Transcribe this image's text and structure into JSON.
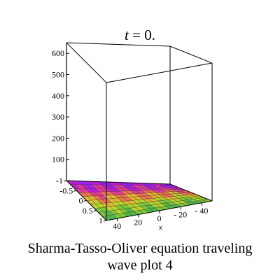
{
  "title": {
    "variable": "t",
    "equals": " = ",
    "value": "0."
  },
  "caption": {
    "line1": "Sharma-Tasso-Oliver equation  traveling",
    "line2": "wave plot 4"
  },
  "chart_data": {
    "type": "surface3d",
    "title": "t = 0.",
    "xlabel": "x",
    "ylabel": "",
    "zlabel": "",
    "x_ticks": [
      40,
      20,
      0,
      -20,
      -40
    ],
    "x_tick_labels": [
      "40",
      "20",
      "0",
      "- 20",
      "- 40"
    ],
    "y_ticks": [
      -1,
      -0.5,
      0,
      0.5,
      1
    ],
    "y_tick_labels": [
      "-1",
      "-0.5",
      "0",
      "0.5",
      "1"
    ],
    "z_ticks": [
      100,
      200,
      300,
      400,
      500,
      600
    ],
    "z_tick_labels": [
      "100",
      "200",
      "300",
      "400",
      "500",
      "600"
    ],
    "xlim": [
      -50,
      50
    ],
    "ylim": [
      -1,
      1
    ],
    "zlim": [
      0,
      650
    ],
    "bounding_box": true,
    "grid": true,
    "surface": {
      "description_of_values": "near-zero height surface lying on the floor of the box, striped along x",
      "rows_y": [
        -1,
        -0.8,
        -0.6,
        -0.4,
        -0.2,
        0,
        0.2,
        0.4,
        0.6,
        0.8,
        1
      ],
      "columns_x": [
        -50,
        -45,
        -40,
        -35,
        -30,
        -25,
        -20,
        -15,
        -10,
        -5,
        0,
        5,
        10,
        15,
        20,
        25,
        30,
        35,
        40,
        45,
        50
      ],
      "z": 0
    },
    "colormap": [
      "#9b1fff",
      "#c21bd8",
      "#e63a9a",
      "#f0724f",
      "#e6b82c",
      "#b7d62a",
      "#7cc83a",
      "#4fb84a"
    ]
  }
}
